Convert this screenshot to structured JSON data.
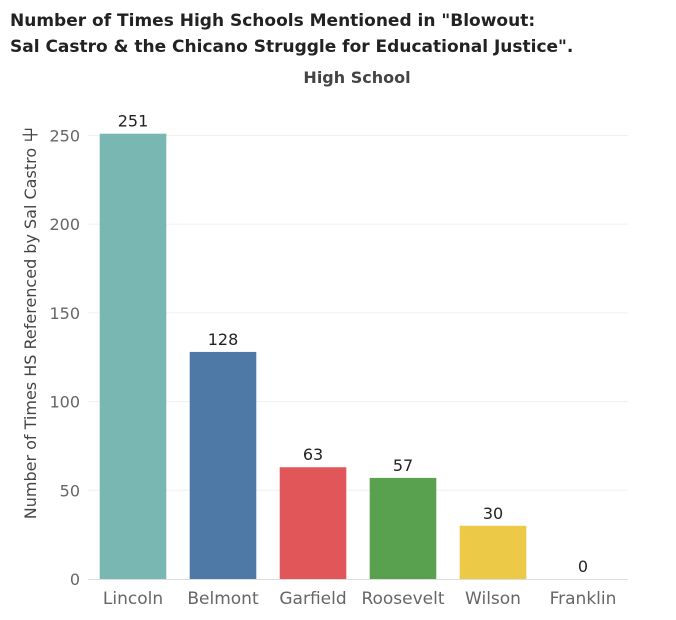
{
  "chart_data": {
    "type": "bar",
    "title_lines": [
      "Number of Times High Schools Mentioned in \"Blowout:",
      "Sal Castro & the Chicano Struggle for Educational Justice\"."
    ],
    "column_header": "High School",
    "ylabel": "Number of Times HS Referenced by Sal Castro ⼬",
    "xlabel": "",
    "ylim": [
      0,
      270
    ],
    "yticks": [
      0,
      50,
      100,
      150,
      200,
      250
    ],
    "categories": [
      "Lincoln",
      "Belmont",
      "Garfield",
      "Roosevelt",
      "Wilson",
      "Franklin"
    ],
    "values": [
      251,
      128,
      63,
      57,
      30,
      0
    ],
    "data_labels": [
      "251",
      "128",
      "63",
      "57",
      "30",
      "0"
    ],
    "colors": [
      "#79b7b2",
      "#4e79a7",
      "#e15759",
      "#59a14f",
      "#edc948",
      "#b07aa1"
    ],
    "grid": true
  }
}
